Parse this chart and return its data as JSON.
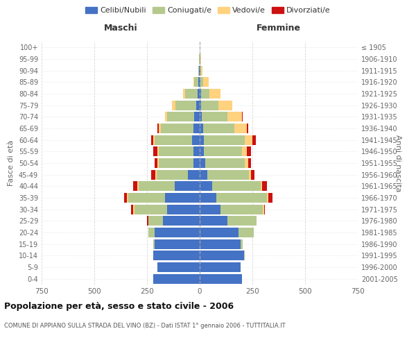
{
  "age_groups": [
    "0-4",
    "5-9",
    "10-14",
    "15-19",
    "20-24",
    "25-29",
    "30-34",
    "35-39",
    "40-44",
    "45-49",
    "50-54",
    "55-59",
    "60-64",
    "65-69",
    "70-74",
    "75-79",
    "80-84",
    "85-89",
    "90-94",
    "95-99",
    "100+"
  ],
  "birth_years": [
    "2001-2005",
    "1996-2000",
    "1991-1995",
    "1986-1990",
    "1981-1985",
    "1976-1980",
    "1971-1975",
    "1966-1970",
    "1961-1965",
    "1956-1960",
    "1951-1955",
    "1946-1950",
    "1941-1945",
    "1936-1940",
    "1931-1935",
    "1926-1930",
    "1921-1925",
    "1916-1920",
    "1911-1915",
    "1906-1910",
    "≤ 1905"
  ],
  "males": {
    "celibi": [
      220,
      200,
      220,
      215,
      215,
      175,
      155,
      165,
      120,
      55,
      30,
      30,
      35,
      30,
      25,
      15,
      10,
      5,
      2,
      1,
      0
    ],
    "coniugati": [
      0,
      0,
      0,
      5,
      30,
      70,
      155,
      175,
      170,
      150,
      165,
      165,
      180,
      155,
      130,
      100,
      60,
      20,
      5,
      2,
      0
    ],
    "vedovi": [
      0,
      0,
      0,
      0,
      0,
      0,
      5,
      5,
      5,
      5,
      5,
      5,
      5,
      10,
      10,
      15,
      10,
      5,
      0,
      0,
      0
    ],
    "divorziati": [
      0,
      0,
      0,
      0,
      0,
      5,
      10,
      15,
      20,
      20,
      15,
      20,
      10,
      5,
      0,
      0,
      0,
      0,
      0,
      0,
      0
    ]
  },
  "females": {
    "nubili": [
      200,
      195,
      210,
      195,
      185,
      130,
      100,
      80,
      60,
      35,
      25,
      20,
      20,
      15,
      10,
      8,
      5,
      3,
      2,
      1,
      0
    ],
    "coniugate": [
      0,
      0,
      5,
      10,
      70,
      140,
      200,
      240,
      230,
      200,
      190,
      180,
      195,
      150,
      120,
      80,
      40,
      15,
      5,
      3,
      0
    ],
    "vedove": [
      0,
      0,
      0,
      0,
      0,
      0,
      5,
      5,
      5,
      10,
      15,
      25,
      35,
      60,
      70,
      65,
      55,
      25,
      5,
      2,
      0
    ],
    "divorziate": [
      0,
      0,
      0,
      0,
      0,
      0,
      5,
      20,
      25,
      15,
      15,
      20,
      15,
      5,
      5,
      0,
      0,
      0,
      0,
      0,
      0
    ]
  },
  "colors": {
    "celibi": "#4472C4",
    "coniugati": "#B5C98E",
    "vedovi": "#FFD27F",
    "divorziati": "#CC1111"
  },
  "title": "Popolazione per età, sesso e stato civile - 2006",
  "subtitle": "COMUNE DI APPIANO SULLA STRADA DEL VINO (BZ) - Dati ISTAT 1° gennaio 2006 - TUTTITALIA.IT",
  "xlabel_left": "Maschi",
  "xlabel_right": "Femmine",
  "ylabel_left": "Fasce di età",
  "ylabel_right": "Anni di nascita",
  "xlim": 750,
  "background_color": "#ffffff",
  "grid_color": "#cccccc"
}
